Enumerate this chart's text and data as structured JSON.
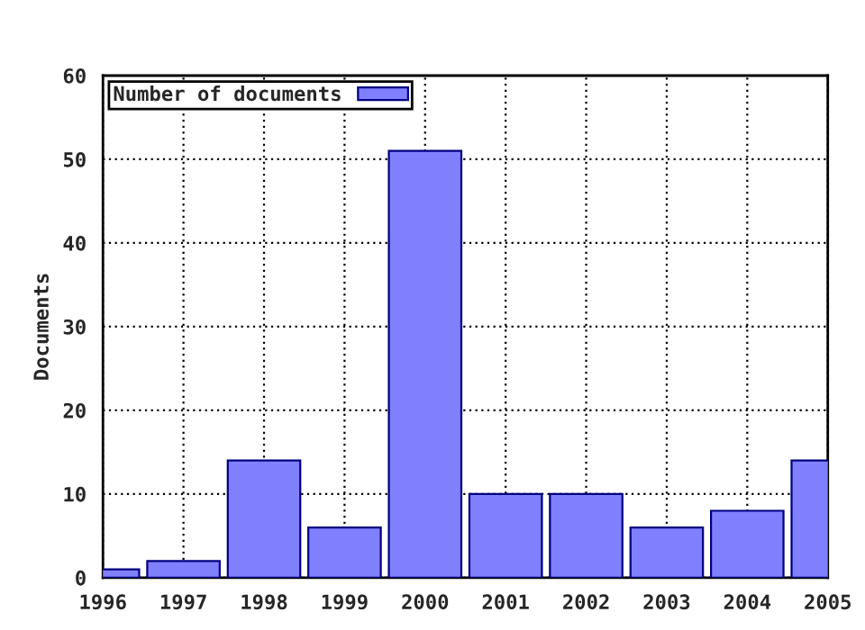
{
  "chart_data": {
    "type": "bar",
    "ylabel": "Documents",
    "x": [
      1996,
      1997,
      1998,
      1999,
      2000,
      2001,
      2002,
      2003,
      2004,
      2005
    ],
    "series": [
      {
        "name": "Number of documents",
        "color": "#8080ff",
        "values": [
          1,
          2,
          14,
          6,
          51,
          10,
          10,
          6,
          8,
          14
        ]
      }
    ],
    "xlim": [
      1996,
      2005
    ],
    "xticks": [
      1996,
      1997,
      1998,
      1999,
      2000,
      2001,
      2002,
      2003,
      2004,
      2005
    ],
    "ylim": [
      0,
      60
    ],
    "yticks": [
      0,
      10,
      20,
      30,
      40,
      50,
      60
    ],
    "grid": true,
    "legend": "top left"
  }
}
